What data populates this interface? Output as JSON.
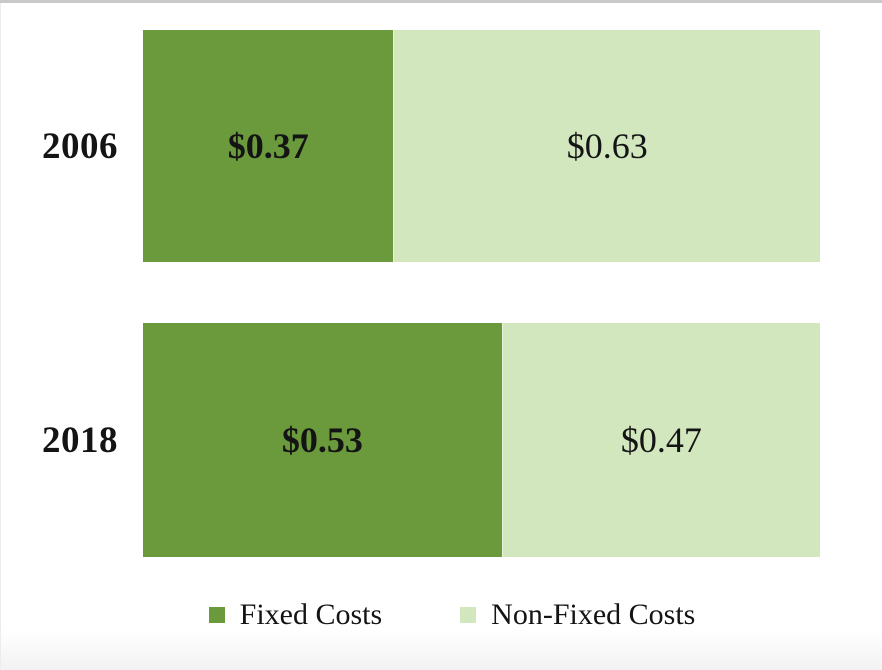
{
  "colors": {
    "fixed_green": "#6A9A3C",
    "non_fixed_green": "#D2E7BE",
    "label_text": "#141414",
    "top_border": "#C9C9C9"
  },
  "chart_data": {
    "type": "bar",
    "orientation": "horizontal",
    "stacked": true,
    "title": "",
    "xlabel": "",
    "ylabel": "",
    "xlim": [
      0,
      1
    ],
    "grid": false,
    "legend_position": "bottom",
    "categories": [
      "2006",
      "2018"
    ],
    "series": [
      {
        "name": "Fixed Costs",
        "color": "#6A9A3C",
        "values": [
          0.37,
          0.53
        ]
      },
      {
        "name": "Non-Fixed Costs",
        "color": "#D2E7BE",
        "values": [
          0.63,
          0.47
        ]
      }
    ],
    "value_labels": [
      [
        "$0.37",
        "$0.63"
      ],
      [
        "$0.53",
        "$0.47"
      ]
    ]
  }
}
